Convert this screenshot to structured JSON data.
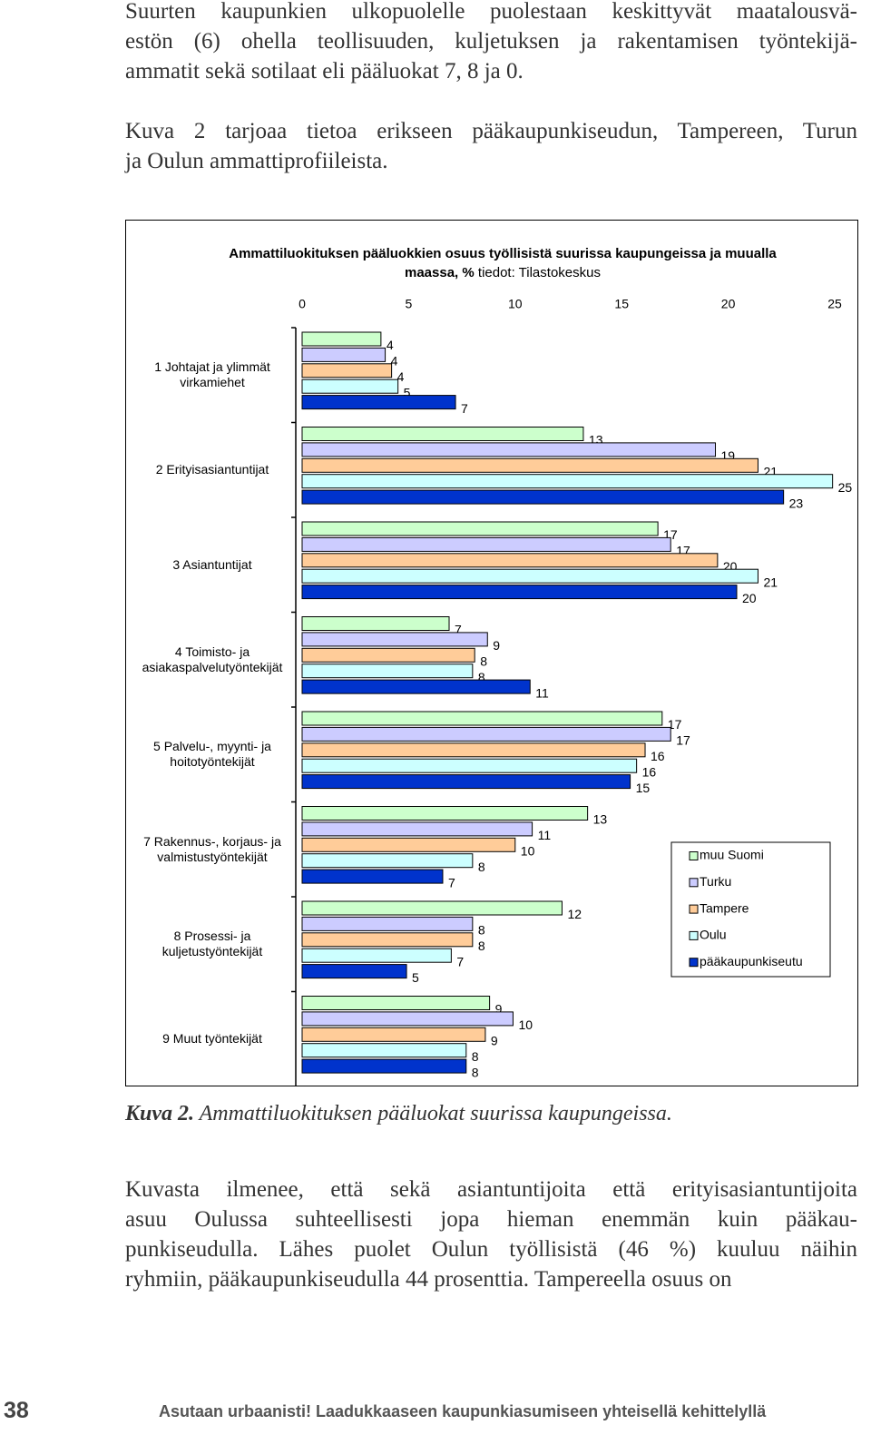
{
  "paragraphs": [
    [
      "Suurten kaupunkien ulkopuolelle puolestaan keskittyvät maatalousvä-",
      "estön (6) ohella teollisuuden, kuljetuksen ja rakentamisen työntekijä-",
      "ammatit sekä sotilaat eli pääluokat 7, 8 ja 0."
    ],
    [
      "Kuva 2 tarjoaa tietoa erikseen pääkaupunkiseudun, Tampereen, Turun",
      "ja Oulun ammattiprofiileista."
    ]
  ],
  "chart_data": {
    "type": "bar",
    "orientation": "horizontal",
    "title": "Ammattiluokituksen pääluokkien osuus työllisistä suurissa kaupungeissa ja muualla maassa, %",
    "source": "tiedot: Tilastokeskus",
    "categories": [
      "1 Johtajat ja ylimmät virkamiehet",
      "2 Erityisasiantuntijat",
      "3 Asiantuntijat",
      "4 Toimisto- ja asiakaspalvelutyöntekijät",
      "5 Palvelu-, myynti- ja hoitotyöntekijät",
      "7 Rakennus-, korjaus- ja valmistustyöntekijät",
      "8 Prosessi- ja kuljetustyöntekijät",
      "9 Muut työntekijät"
    ],
    "xlim": [
      0,
      25
    ],
    "xticks": [
      0,
      5,
      10,
      15,
      20,
      25
    ],
    "grid": false,
    "series": [
      {
        "name": "muu Suomi",
        "color": "#ccffcc",
        "values": [
          3.7,
          13.2,
          16.7,
          6.9,
          16.9,
          13.4,
          12.2,
          8.8
        ],
        "value_labels": [
          "4",
          "13",
          "17",
          "7",
          "17",
          "13",
          "12",
          "9"
        ]
      },
      {
        "name": "Turku",
        "color": "#ccccff",
        "values": [
          3.9,
          19.4,
          17.3,
          8.7,
          17.3,
          10.8,
          8.0,
          9.9
        ],
        "value_labels": [
          "4",
          "19",
          "17",
          "9",
          "17",
          "11",
          "8",
          "10"
        ]
      },
      {
        "name": "Tampere",
        "color": "#ffcc99",
        "values": [
          4.2,
          21.4,
          19.5,
          8.1,
          16.1,
          10.0,
          8.0,
          8.6
        ],
        "value_labels": [
          "4",
          "21",
          "20",
          "8",
          "16",
          "10",
          "8",
          "9"
        ]
      },
      {
        "name": "Oulu",
        "color": "#ccffff",
        "values": [
          4.5,
          24.9,
          21.4,
          8.0,
          15.7,
          8.0,
          7.0,
          7.7
        ],
        "value_labels": [
          "5",
          "25",
          "21",
          "8",
          "16",
          "8",
          "7",
          "8"
        ]
      },
      {
        "name": "pääkaupunkiseutu",
        "color": "#0033cc",
        "values": [
          7.2,
          22.6,
          20.4,
          10.7,
          15.4,
          6.6,
          4.9,
          7.7
        ],
        "value_labels": [
          "7",
          "23",
          "20",
          "11",
          "15",
          "7",
          "5",
          "8"
        ]
      }
    ]
  },
  "caption": {
    "label": "Kuva 2.",
    "text": "Ammattiluokituksen pääluokat suurissa kaupungeissa."
  },
  "paragraphs_after": [
    [
      "Kuvasta ilmenee, että sekä asiantuntijoita että erityisasiantuntijoita",
      "asuu Oulussa suhteellisesti jopa hieman enemmän kuin pääkau-",
      "punkiseudulla. Lähes puolet Oulun työllisistä (46 %) kuuluu näihin",
      "ryhmiin, pääkaupunkiseudulla 44 prosenttia. Tampereella osuus on"
    ]
  ],
  "footer": {
    "page_number": "38",
    "title": "Asutaan urbaanisti! Laadukkaaseen kaupunkiasumiseen yhteisellä kehittelyllä"
  }
}
